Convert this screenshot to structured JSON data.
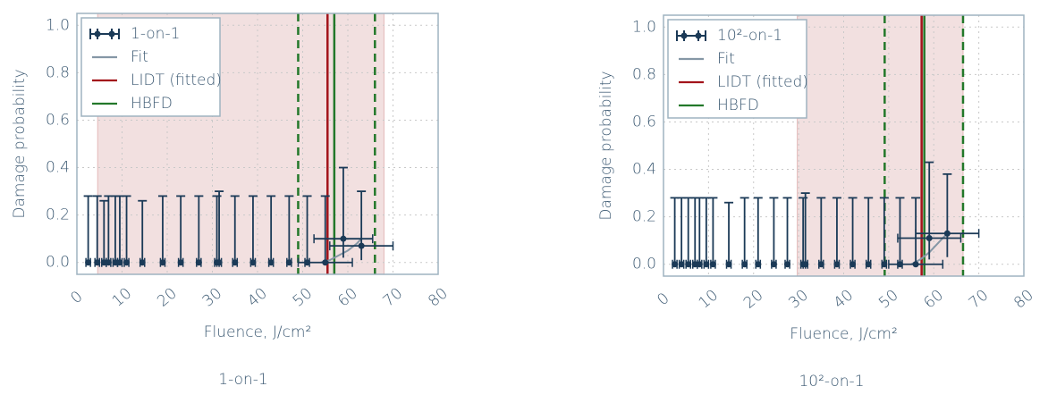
{
  "chart_data": [
    {
      "type": "scatter",
      "caption": "1-on-1",
      "xlabel": "Fluence, J/cm²",
      "ylabel": "Damage probability",
      "xlim": [
        0,
        80
      ],
      "ylim": [
        -0.05,
        1.05
      ],
      "xticks": [
        0,
        10,
        20,
        30,
        40,
        50,
        60,
        70,
        80
      ],
      "yticks": [
        {
          "value": 0,
          "label": "0.0"
        },
        0.2,
        0.4,
        0.6,
        0.8,
        {
          "value": 1,
          "label": "1.0"
        }
      ],
      "grid": true,
      "legend": "upper left",
      "points": {
        "name": "1-on-1",
        "color": "#1b3a57",
        "x": [
          2.5,
          4.5,
          6,
          7,
          8.5,
          9.5,
          11,
          14.5,
          19,
          23,
          27,
          31,
          31.5,
          35,
          39,
          43,
          47,
          51,
          55,
          59,
          63
        ],
        "y": [
          0,
          0,
          0,
          0,
          0,
          0,
          0,
          0,
          0,
          0,
          0,
          0,
          0,
          0,
          0,
          0,
          0,
          0,
          0,
          0.1,
          0.07
        ],
        "yerr_low": [
          0,
          0,
          0,
          0,
          0,
          0,
          0,
          0,
          0,
          0,
          0,
          0,
          0,
          0,
          0,
          0,
          0,
          0,
          0,
          0.08,
          0.06
        ],
        "yerr_high": [
          0.28,
          0.28,
          0.26,
          0.28,
          0.28,
          0.28,
          0.28,
          0.26,
          0.28,
          0.28,
          0.28,
          0.28,
          0.3,
          0.28,
          0.28,
          0.28,
          0.28,
          0.28,
          0.28,
          0.3,
          0.23
        ],
        "xerr": [
          0.5,
          0.5,
          0.5,
          0.5,
          0.5,
          0.5,
          0.5,
          0.5,
          0.5,
          0.5,
          0.5,
          0.5,
          0.5,
          0.5,
          0.5,
          0.5,
          0.5,
          0.5,
          6,
          6.5,
          7
        ]
      },
      "fit": {
        "name": "Fit",
        "color": "#8597a6",
        "x": [
          54,
          56,
          58,
          60,
          62,
          63
        ],
        "y": [
          0,
          0.01,
          0.03,
          0.05,
          0.08,
          0.1
        ]
      },
      "lidt": {
        "name": "LIDT (fitted)",
        "color": "#a3141b",
        "value": 55.5,
        "shade": [
          4.6,
          68
        ]
      },
      "hbfd": {
        "name": "HBFD",
        "color": "#23782a",
        "value": 57,
        "range": [
          49,
          66
        ]
      }
    },
    {
      "type": "scatter",
      "caption": "10²-on-1",
      "xlabel": "Fluence, J/cm²",
      "ylabel": "Damage probability",
      "xlim": [
        0,
        80
      ],
      "ylim": [
        -0.05,
        1.05
      ],
      "xticks": [
        0,
        10,
        20,
        30,
        40,
        50,
        60,
        70,
        80
      ],
      "yticks": [
        {
          "value": 0,
          "label": "0.0"
        },
        0.2,
        0.4,
        0.6,
        0.8,
        {
          "value": 1,
          "label": "1.0"
        }
      ],
      "grid": true,
      "legend": "upper left",
      "points": {
        "name": "10²-on-1",
        "color": "#1b3a57",
        "x": [
          2.5,
          4,
          5.5,
          7,
          8,
          9.5,
          11,
          14.5,
          18,
          21,
          24.5,
          27.5,
          31,
          31.5,
          35,
          38.5,
          42,
          45.5,
          49,
          52.5,
          56,
          59,
          63
        ],
        "y": [
          0,
          0,
          0,
          0,
          0,
          0,
          0,
          0,
          0,
          0,
          0,
          0,
          0,
          0,
          0,
          0,
          0,
          0,
          0,
          0,
          0,
          0.11,
          0.13
        ],
        "yerr_low": [
          0,
          0,
          0,
          0,
          0,
          0,
          0,
          0,
          0,
          0,
          0,
          0,
          0,
          0,
          0,
          0,
          0,
          0,
          0,
          0,
          0,
          0.09,
          0.1
        ],
        "yerr_high": [
          0.28,
          0.28,
          0.28,
          0.28,
          0.28,
          0.28,
          0.28,
          0.26,
          0.28,
          0.28,
          0.28,
          0.28,
          0.28,
          0.3,
          0.28,
          0.28,
          0.28,
          0.28,
          0.28,
          0.28,
          0.28,
          0.32,
          0.25
        ],
        "xerr": [
          0.5,
          0.5,
          0.5,
          0.5,
          0.5,
          0.5,
          0.5,
          0.5,
          0.5,
          0.5,
          0.5,
          0.5,
          0.5,
          0.5,
          0.5,
          0.5,
          0.5,
          0.5,
          0.5,
          0.5,
          6,
          7,
          7
        ]
      },
      "fit": {
        "name": "Fit",
        "color": "#8597a6",
        "x": [
          55,
          57,
          59,
          61,
          63
        ],
        "y": [
          0,
          0.02,
          0.05,
          0.09,
          0.13
        ]
      },
      "lidt": {
        "name": "LIDT (fitted)",
        "color": "#a3141b",
        "value": 57.3,
        "shade": [
          29.7,
          66.5
        ]
      },
      "hbfd": {
        "name": "HBFD",
        "color": "#23782a",
        "value": 57.9,
        "range": [
          49.1,
          66.5
        ]
      }
    }
  ]
}
